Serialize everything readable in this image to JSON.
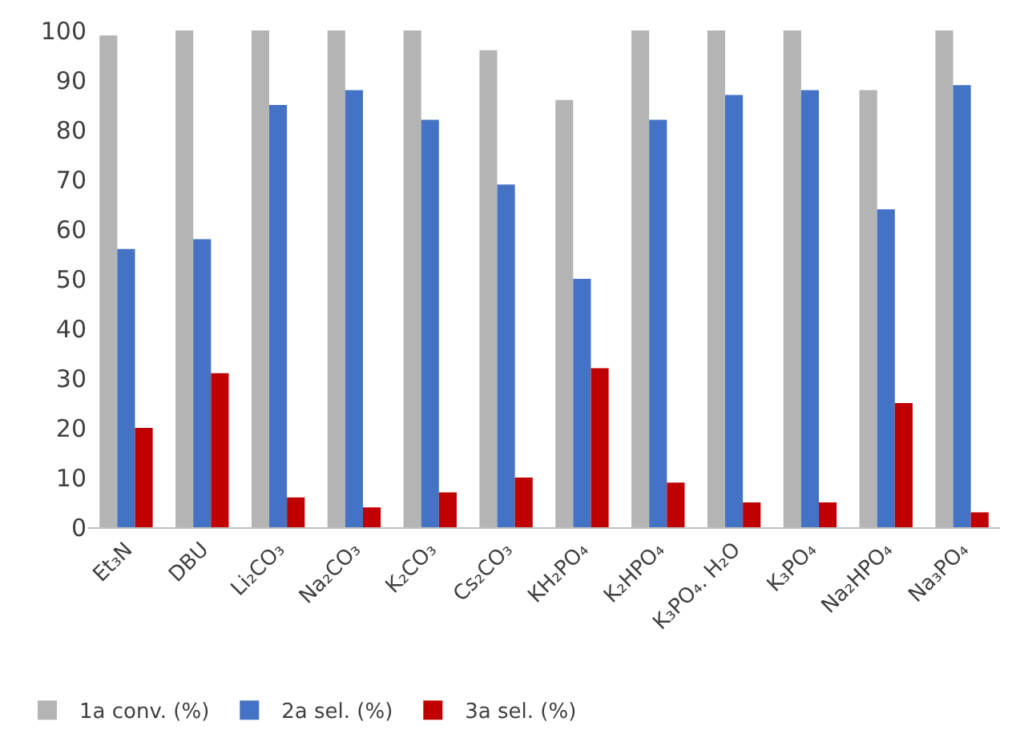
{
  "chart_data": {
    "type": "bar",
    "categories": [
      "Et₃N",
      "DBU",
      "Li₂CO₃",
      "Na₂CO₃",
      "K₂CO₃",
      "Cs₂CO₃",
      "KH₂PO₄",
      "K₂HPO₄",
      "K₃PO₄. H₂O",
      "K₃PO₄",
      "Na₂HPO₄",
      "Na₃PO₄"
    ],
    "series": [
      {
        "name": "1a conv. (%)",
        "color": "#b4b4b4",
        "values": [
          99,
          100,
          100,
          100,
          100,
          96,
          86,
          100,
          100,
          100,
          88,
          100
        ]
      },
      {
        "name": "2a sel. (%)",
        "color": "#4472c4",
        "values": [
          56,
          58,
          85,
          88,
          82,
          69,
          50,
          82,
          87,
          88,
          64,
          89
        ]
      },
      {
        "name": "3a sel. (%)",
        "color": "#c00000",
        "values": [
          20,
          31,
          6,
          4,
          7,
          10,
          32,
          9,
          5,
          5,
          25,
          3
        ]
      }
    ],
    "ylim": [
      0,
      100
    ],
    "yticks": [
      0,
      10,
      20,
      30,
      40,
      50,
      60,
      70,
      80,
      90,
      100
    ],
    "legend": "bottom left"
  }
}
